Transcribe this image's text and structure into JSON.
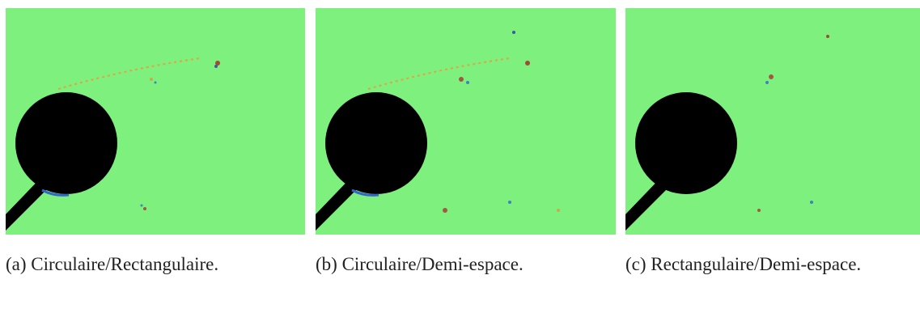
{
  "figure": {
    "panels": [
      {
        "caption": "(a) Circulaire/Rectangulaire."
      },
      {
        "caption": "(b) Circulaire/Demi-espace."
      },
      {
        "caption": "(c) Rectangulaire/Demi-espace."
      }
    ]
  }
}
